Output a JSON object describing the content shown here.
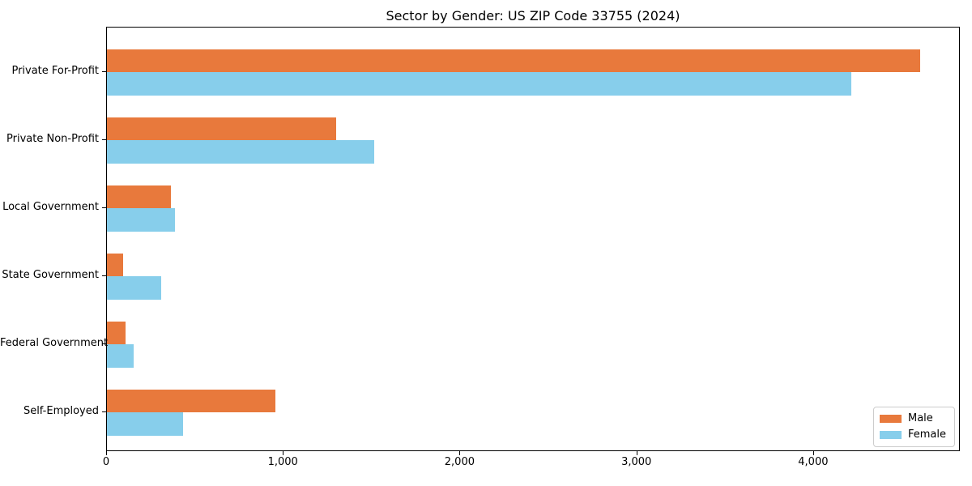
{
  "title": "Sector by Gender: US ZIP Code 33755 (2024)",
  "colors": {
    "male": "#E8793C",
    "female": "#87CEEB",
    "spine": "#000000",
    "legend_border": "#cccccc",
    "background": "#ffffff",
    "text": "#000000"
  },
  "chart_data": {
    "type": "bar",
    "orientation": "horizontal",
    "title": "Sector by Gender: US ZIP Code 33755 (2024)",
    "categories": [
      "Private For-Profit",
      "Private Non-Profit",
      "Local Government",
      "State Government",
      "Federal Government",
      "Self-Employed"
    ],
    "series": [
      {
        "name": "Male",
        "color": "#E8793C",
        "values": [
          4600,
          1295,
          360,
          90,
          105,
          955
        ]
      },
      {
        "name": "Female",
        "color": "#87CEEB",
        "values": [
          4210,
          1510,
          385,
          305,
          150,
          430
        ]
      }
    ],
    "xlabel": "",
    "ylabel": "",
    "xlim": [
      0,
      4830
    ],
    "xticks": [
      0,
      1000,
      2000,
      3000,
      4000
    ],
    "xtick_labels": [
      "0",
      "1,000",
      "2,000",
      "3,000",
      "4,000"
    ],
    "grid": false,
    "legend_position": "lower right",
    "legend_entries": [
      "Male",
      "Female"
    ]
  }
}
